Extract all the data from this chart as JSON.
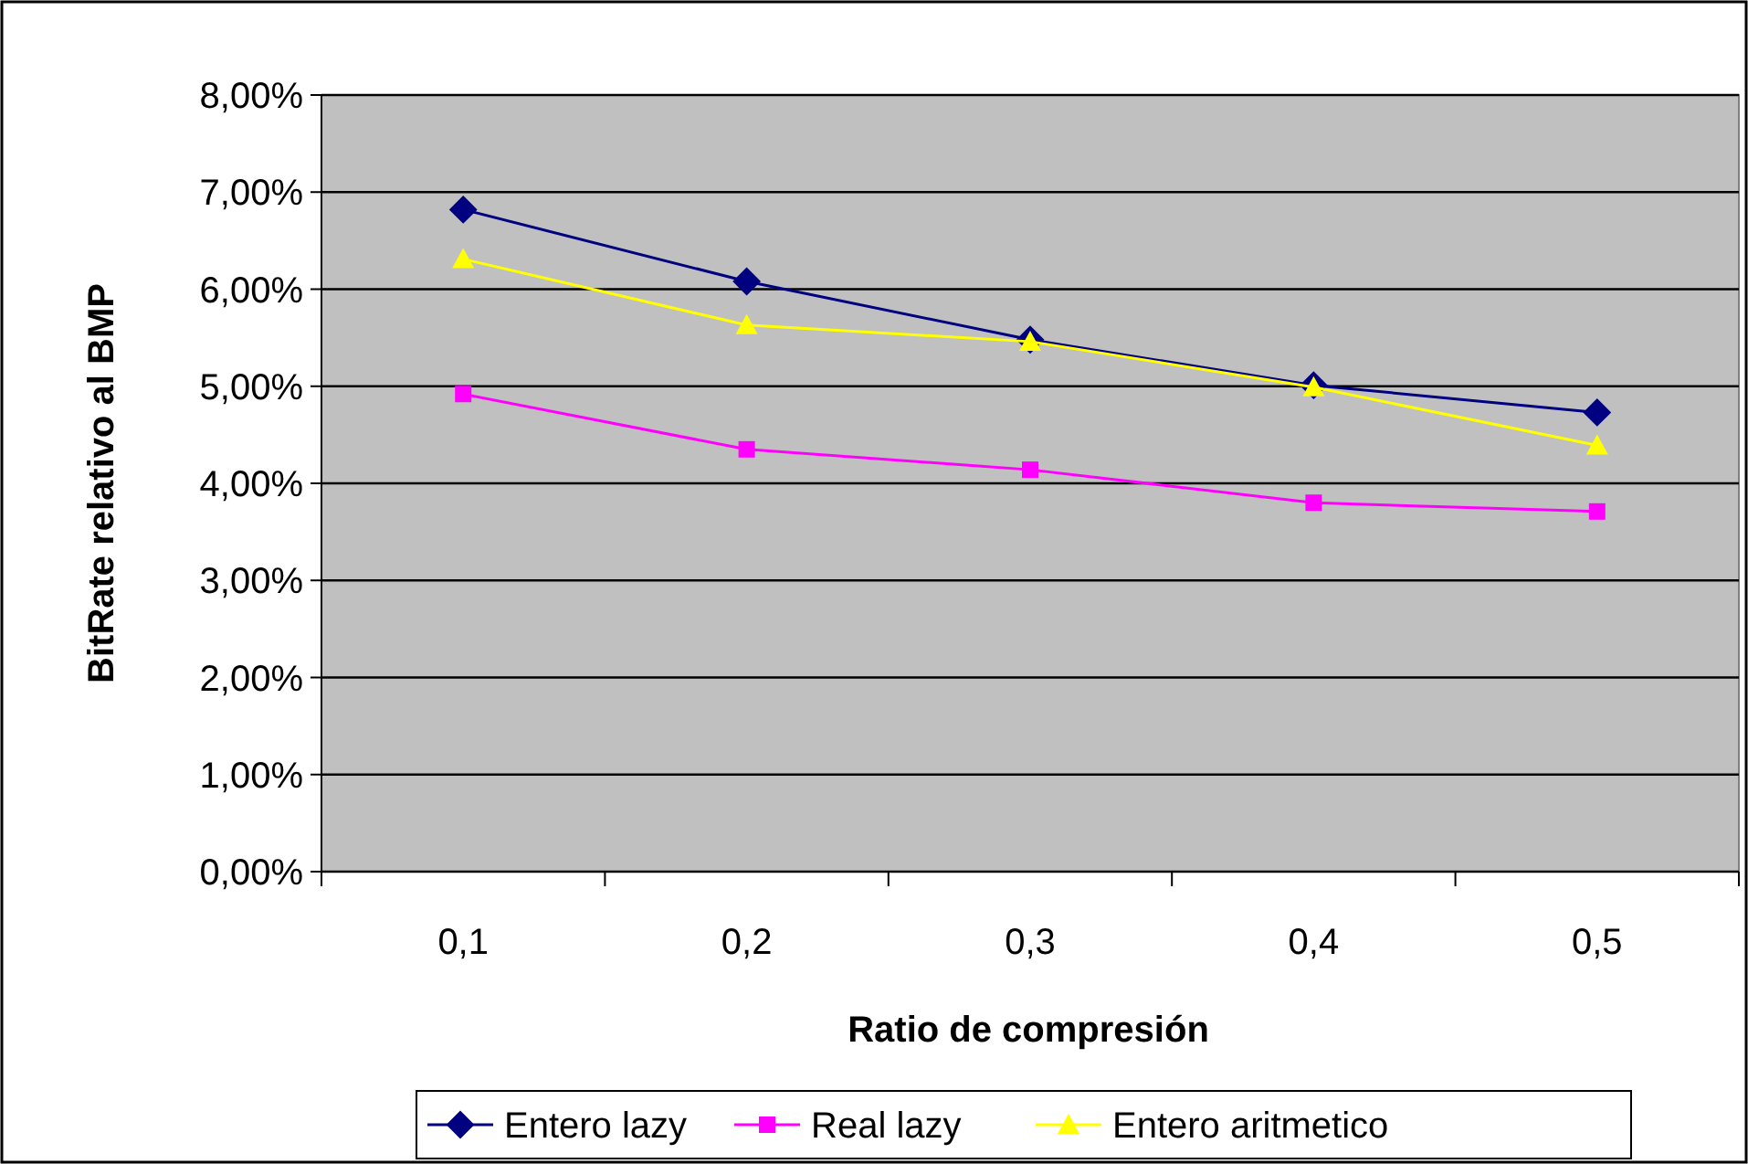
{
  "chart_data": {
    "type": "line",
    "xlabel": "Ratio de compresión",
    "ylabel": "BitRate relativo al BMP",
    "categories": [
      "0,1",
      "0,2",
      "0,3",
      "0,4",
      "0,5"
    ],
    "series": [
      {
        "name": "Entero lazy",
        "color": "#000080",
        "marker": "diamond",
        "values": [
          6.82,
          6.08,
          5.48,
          5.01,
          4.73
        ]
      },
      {
        "name": "Real lazy",
        "color": "#ff00ff",
        "marker": "square",
        "values": [
          4.92,
          4.35,
          4.14,
          3.8,
          3.71
        ]
      },
      {
        "name": "Entero aritmetico",
        "color": "#ffff00",
        "marker": "triangle",
        "values": [
          6.31,
          5.63,
          5.46,
          4.99,
          4.39
        ]
      }
    ],
    "ylim": [
      0,
      8
    ],
    "yticks": [
      {
        "value": 0,
        "label": "0,00%"
      },
      {
        "value": 1,
        "label": "1,00%"
      },
      {
        "value": 2,
        "label": "2,00%"
      },
      {
        "value": 3,
        "label": "3,00%"
      },
      {
        "value": 4,
        "label": "4,00%"
      },
      {
        "value": 5,
        "label": "5,00%"
      },
      {
        "value": 6,
        "label": "6,00%"
      },
      {
        "value": 7,
        "label": "7,00%"
      },
      {
        "value": 8,
        "label": "8,00%"
      }
    ],
    "grid": "y",
    "legend": "bottom"
  }
}
